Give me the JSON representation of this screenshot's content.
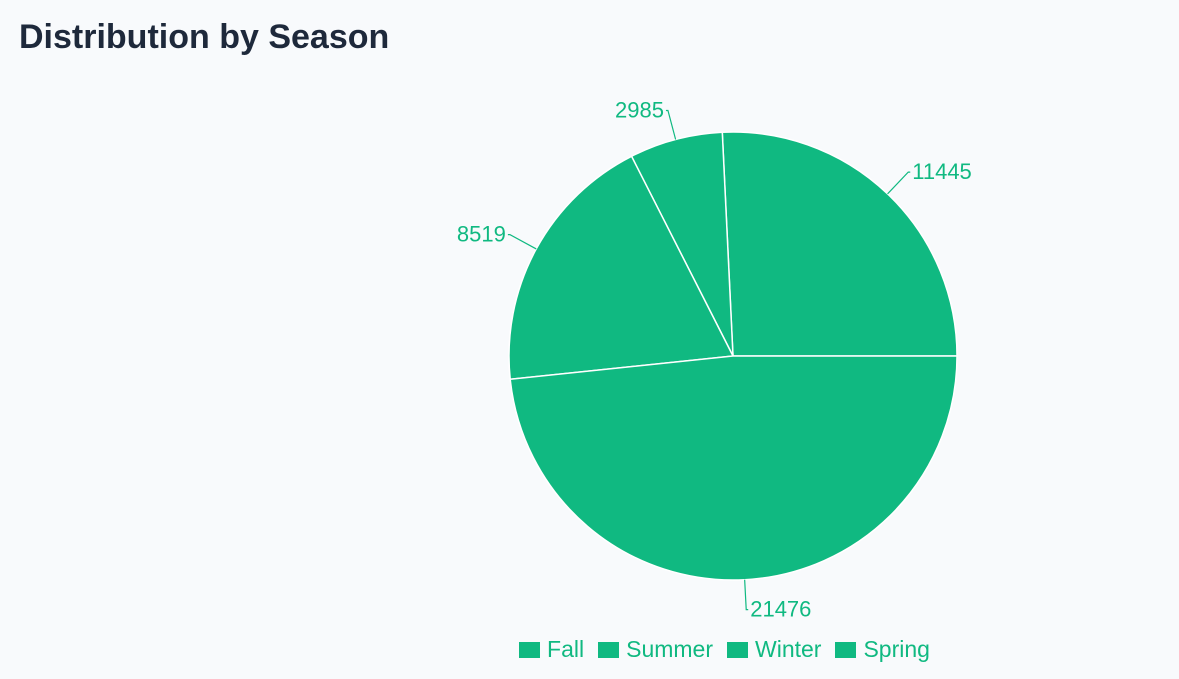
{
  "page": {
    "title": "Distribution by Season"
  },
  "colors": {
    "slice": "#10b981",
    "slice_stroke": "#ffffff",
    "title": "#1e293b",
    "background": "#f8fafc"
  },
  "chart_data": {
    "type": "pie",
    "title": "Distribution by Season",
    "categories": [
      "Fall",
      "Summer",
      "Winter",
      "Spring"
    ],
    "values": [
      11445,
      2985,
      8519,
      21476
    ],
    "legend_position": "bottom",
    "data_labels": [
      "11445",
      "2985",
      "8519",
      "21476"
    ]
  }
}
